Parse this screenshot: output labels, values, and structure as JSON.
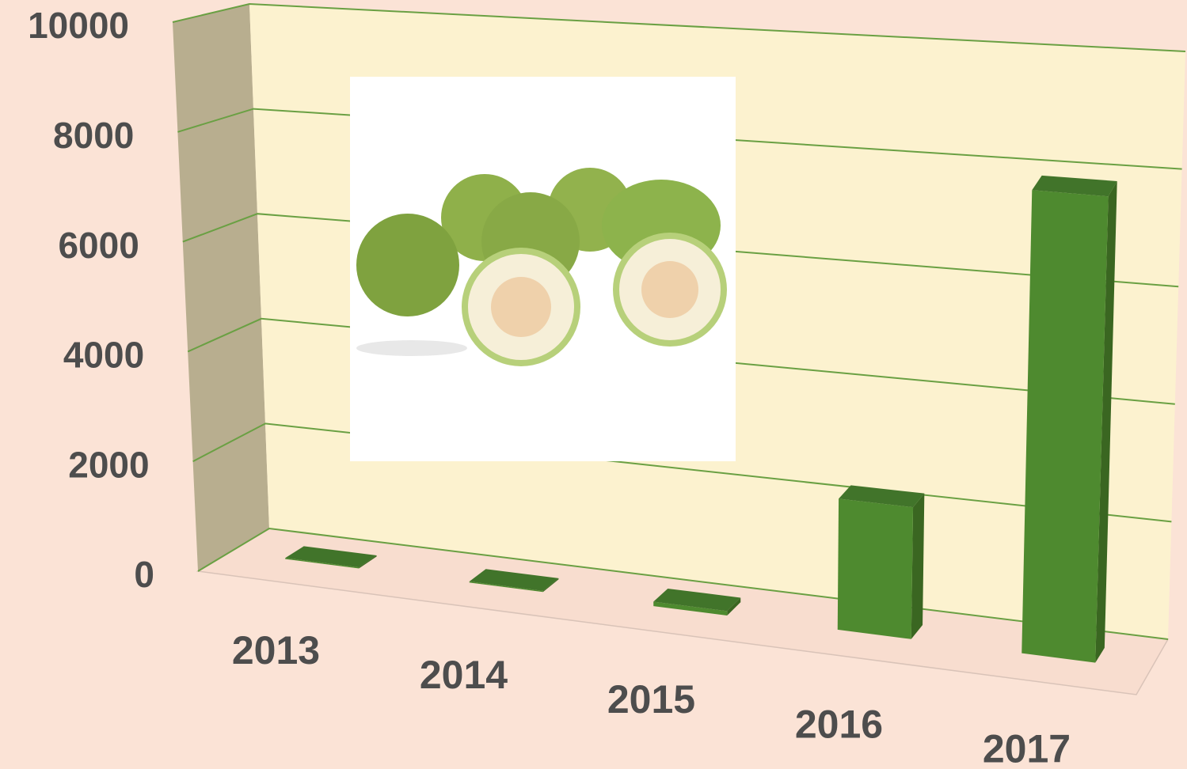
{
  "chart_data": {
    "type": "bar3d",
    "categories": [
      "2013",
      "2014",
      "2015",
      "2016",
      "2017"
    ],
    "values": [
      20,
      20,
      80,
      2300,
      8000
    ],
    "color": "#4e8a2f",
    "ylim": [
      0,
      10000
    ],
    "yticks": [
      0,
      2000,
      4000,
      6000,
      8000,
      10000
    ],
    "grid": true
  }
}
